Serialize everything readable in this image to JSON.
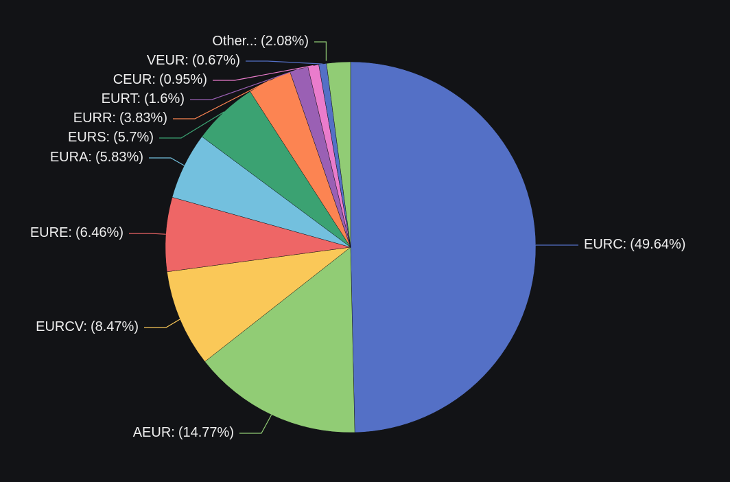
{
  "chart_data": {
    "type": "pie",
    "categories": [
      "EURC:",
      "AEUR:",
      "EURCV:",
      "EURE:",
      "EURA:",
      "EURS:",
      "EURR:",
      "EURT:",
      "CEUR:",
      "VEUR:",
      "Other..:"
    ],
    "values": [
      49.64,
      14.77,
      8.47,
      6.46,
      5.83,
      5.7,
      3.83,
      1.6,
      0.95,
      0.67,
      2.08
    ],
    "value_labels": [
      "(49.64%)",
      "(14.77%)",
      "(8.47%)",
      "(6.46%)",
      "(5.83%)",
      "(5.7%)",
      "(3.83%)",
      "(1.6%)",
      "(0.95%)",
      "(0.67%)",
      "(2.08%)"
    ],
    "colors": [
      "#5470c6",
      "#91cc75",
      "#fac858",
      "#ee6666",
      "#73c0de",
      "#3ba272",
      "#fc8452",
      "#9a60b4",
      "#ea7ccc",
      "#5470c6",
      "#91cc75"
    ]
  }
}
